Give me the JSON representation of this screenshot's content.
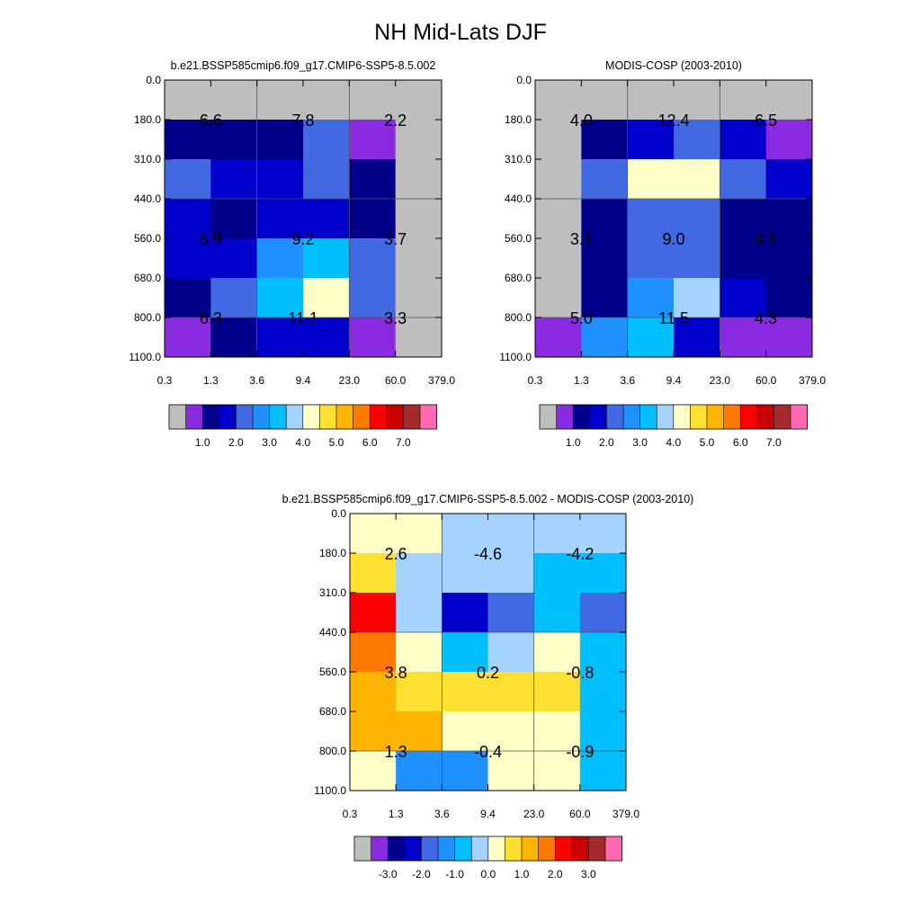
{
  "title": "NH Mid-Lats DJF",
  "y_tick_labels": [
    "0.0",
    "180.0",
    "310.0",
    "440.0",
    "560.0",
    "680.0",
    "800.0",
    "1100.0"
  ],
  "x_tick_labels": [
    "0.3",
    "1.3",
    "3.6",
    "9.4",
    "23.0",
    "60.0",
    "379.0"
  ],
  "palette": [
    "#bebebe",
    "#8a2be2",
    "#00008b",
    "#0000cd",
    "#4169e1",
    "#1e90ff",
    "#00bfff",
    "#a4d3ff",
    "#ffffc8",
    "#ffe030",
    "#ffb400",
    "#ff7800",
    "#ff0000",
    "#c80000",
    "#a52a2a",
    "#ff69b4"
  ],
  "chart_data": [
    {
      "type": "heatmap",
      "title": "b.e21.BSSP585cmip6.f09_g17.CMIP6-SSP5-8.5.002",
      "colorbar_labels": [
        "1.0",
        "2.0",
        "3.0",
        "4.0",
        "5.0",
        "6.0",
        "7.0"
      ],
      "color_index_grid": [
        [
          0,
          0,
          0,
          0,
          0,
          0
        ],
        [
          2,
          2,
          2,
          4,
          1,
          0
        ],
        [
          4,
          3,
          3,
          4,
          2,
          0
        ],
        [
          3,
          2,
          3,
          3,
          2,
          0
        ],
        [
          3,
          3,
          5,
          6,
          4,
          0
        ],
        [
          2,
          4,
          6,
          8,
          4,
          0
        ],
        [
          1,
          2,
          3,
          3,
          1,
          0
        ]
      ],
      "annotations": [
        {
          "row": 1,
          "col": 1,
          "text": "6.6"
        },
        {
          "row": 1,
          "col": 3,
          "text": "7.8"
        },
        {
          "row": 1,
          "col": 5,
          "text": "2.2"
        },
        {
          "row": 4,
          "col": 1,
          "text": "6.9"
        },
        {
          "row": 4,
          "col": 3,
          "text": "9.2"
        },
        {
          "row": 4,
          "col": 5,
          "text": "3.7"
        },
        {
          "row": 6,
          "col": 1,
          "text": "6.3"
        },
        {
          "row": 6,
          "col": 3,
          "text": "11.1"
        },
        {
          "row": 6,
          "col": 5,
          "text": "3.3"
        }
      ]
    },
    {
      "type": "heatmap",
      "title": "MODIS-COSP (2003-2010)",
      "colorbar_labels": [
        "1.0",
        "2.0",
        "3.0",
        "4.0",
        "5.0",
        "6.0",
        "7.0"
      ],
      "color_index_grid": [
        [
          0,
          0,
          0,
          0,
          0,
          0
        ],
        [
          0,
          2,
          3,
          4,
          3,
          1
        ],
        [
          0,
          4,
          8,
          8,
          4,
          3
        ],
        [
          0,
          2,
          4,
          4,
          2,
          2
        ],
        [
          0,
          2,
          4,
          4,
          2,
          2
        ],
        [
          0,
          2,
          5,
          7,
          3,
          2
        ],
        [
          1,
          5,
          6,
          3,
          1,
          1
        ]
      ],
      "annotations": [
        {
          "row": 1,
          "col": 1,
          "text": "4.0"
        },
        {
          "row": 1,
          "col": 3,
          "text": "12.4"
        },
        {
          "row": 1,
          "col": 5,
          "text": "6.5"
        },
        {
          "row": 4,
          "col": 1,
          "text": "3.1"
        },
        {
          "row": 4,
          "col": 3,
          "text": "9.0"
        },
        {
          "row": 4,
          "col": 5,
          "text": "4.5"
        },
        {
          "row": 6,
          "col": 1,
          "text": "5.0"
        },
        {
          "row": 6,
          "col": 3,
          "text": "11.5"
        },
        {
          "row": 6,
          "col": 5,
          "text": "4.3"
        }
      ]
    },
    {
      "type": "heatmap",
      "title": "b.e21.BSSP585cmip6.f09_g17.CMIP6-SSP5-8.5.002 - MODIS-COSP (2003-2010)",
      "colorbar_labels": [
        "-3.0",
        "-2.0",
        "-1.0",
        "0.0",
        "1.0",
        "2.0",
        "3.0"
      ],
      "color_index_grid": [
        [
          8,
          8,
          7,
          7,
          7,
          7
        ],
        [
          9,
          7,
          7,
          7,
          6,
          6
        ],
        [
          12,
          7,
          3,
          4,
          6,
          4
        ],
        [
          11,
          8,
          6,
          7,
          8,
          6
        ],
        [
          10,
          9,
          9,
          9,
          9,
          6
        ],
        [
          10,
          10,
          8,
          8,
          8,
          6
        ],
        [
          8,
          5,
          5,
          8,
          8,
          6
        ]
      ],
      "annotations": [
        {
          "row": 1,
          "col": 1,
          "text": "2.6"
        },
        {
          "row": 1,
          "col": 3,
          "text": "-4.6"
        },
        {
          "row": 1,
          "col": 5,
          "text": "-4.2"
        },
        {
          "row": 4,
          "col": 1,
          "text": "3.8"
        },
        {
          "row": 4,
          "col": 3,
          "text": "0.2"
        },
        {
          "row": 4,
          "col": 5,
          "text": "-0.8"
        },
        {
          "row": 6,
          "col": 1,
          "text": "1.3"
        },
        {
          "row": 6,
          "col": 3,
          "text": "-0.4"
        },
        {
          "row": 6,
          "col": 5,
          "text": "-0.9"
        }
      ]
    }
  ]
}
